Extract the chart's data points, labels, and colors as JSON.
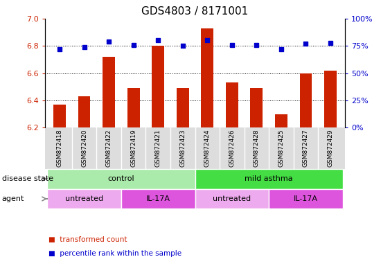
{
  "title": "GDS4803 / 8171001",
  "samples": [
    "GSM872418",
    "GSM872420",
    "GSM872422",
    "GSM872419",
    "GSM872421",
    "GSM872423",
    "GSM872424",
    "GSM872426",
    "GSM872428",
    "GSM872425",
    "GSM872427",
    "GSM872429"
  ],
  "bar_values": [
    6.37,
    6.43,
    6.72,
    6.49,
    6.8,
    6.49,
    6.93,
    6.53,
    6.49,
    6.3,
    6.6,
    6.62
  ],
  "dot_values": [
    72,
    74,
    79,
    76,
    80,
    75,
    80,
    76,
    76,
    72,
    77,
    78
  ],
  "bar_color": "#cc2200",
  "dot_color": "#0000cc",
  "ylim_left": [
    6.2,
    7.0
  ],
  "ylim_right": [
    0,
    100
  ],
  "yticks_left": [
    6.2,
    6.4,
    6.6,
    6.8,
    7.0
  ],
  "yticks_right": [
    0,
    25,
    50,
    75,
    100
  ],
  "ytick_labels_right": [
    "0%",
    "25%",
    "50%",
    "75%",
    "100%"
  ],
  "grid_values": [
    6.4,
    6.6,
    6.8
  ],
  "disease_state_groups": [
    {
      "label": "control",
      "start": 0,
      "end": 6,
      "color": "#aaeaaa"
    },
    {
      "label": "mild asthma",
      "start": 6,
      "end": 12,
      "color": "#44dd44"
    }
  ],
  "agent_groups": [
    {
      "label": "untreated",
      "start": 0,
      "end": 3,
      "color": "#eeaaee"
    },
    {
      "label": "IL-17A",
      "start": 3,
      "end": 6,
      "color": "#dd55dd"
    },
    {
      "label": "untreated",
      "start": 6,
      "end": 9,
      "color": "#eeaaee"
    },
    {
      "label": "IL-17A",
      "start": 9,
      "end": 12,
      "color": "#dd55dd"
    }
  ],
  "legend_items": [
    {
      "label": "transformed count",
      "color": "#cc2200"
    },
    {
      "label": "percentile rank within the sample",
      "color": "#0000cc"
    }
  ],
  "ylabel_left_color": "#cc2200",
  "ylabel_right_color": "#0000cc",
  "background_color": "#ffffff",
  "bar_width": 0.5,
  "tick_fontsize": 8,
  "title_fontsize": 11,
  "label_fontsize": 8,
  "sample_fontsize": 6.5,
  "xtick_bg_color": "#dddddd"
}
